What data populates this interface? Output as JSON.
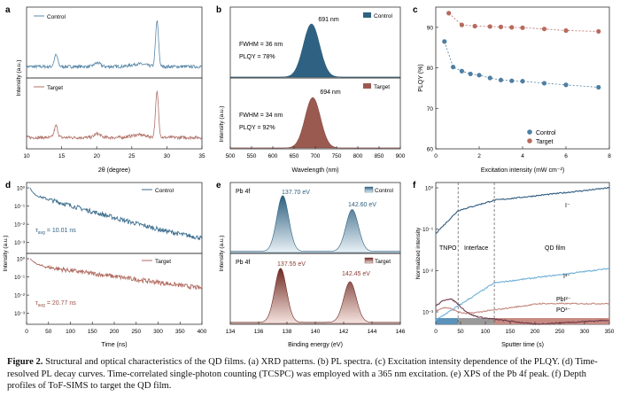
{
  "caption": {
    "label": "Figure 2.",
    "text": "Structural and optical characteristics of the QD films. (a) XRD patterns. (b) PL spectra. (c) Excitation intensity dependence of the PLQY. (d) Time-resolved PL decay curves. Time-correlated single-photon counting (TCSPC) was employed with a 365 nm excitation. (e) XPS of the Pb 4f peak. (f) Depth profiles of ToF-SIMS to target the QD film."
  },
  "colors": {
    "control": "#3d6e8f",
    "target": "#a65a4e",
    "control_light": "#6fa3c7",
    "target_light": "#d39a8e"
  },
  "panels": {
    "a": {
      "letter": "a",
      "ylabel": "Intensity (a.u.)",
      "legend_top": "Control",
      "legend_bottom": "Target"
    },
    "b": {
      "letter": "b",
      "ylabel": "Intensity (a.u.)",
      "legend_top": "Control",
      "legend_bottom": "Target",
      "peak_top": "691 nm",
      "fwhm_top": "FWHM = 36 nm",
      "plqy_top": "PLQY = 78%",
      "peak_bottom": "694 nm",
      "fwhm_bottom": "FWHM = 34 nm",
      "plqy_bottom": "PLQY = 92%"
    },
    "d": {
      "letter": "d",
      "ylabel": "Intensity (a.u.)",
      "legend_top": "Control",
      "legend_bottom": "Target",
      "tau_top": "= 10.01 ns",
      "tau_bottom": "= 20.77 ns",
      "tau_symbol": "τ",
      "tau_sub": "avg"
    },
    "e": {
      "letter": "e",
      "legend_top": "Control",
      "legend_bottom": "Target",
      "orbital": "Pb 4f",
      "peaks_top": [
        "137.70 eV",
        "142.60 eV"
      ],
      "peaks_bottom": [
        "137.55 eV",
        "142.45 eV"
      ]
    },
    "f": {
      "letter": "f",
      "regions": [
        "TNPO",
        "Interface",
        "QD film"
      ]
    }
  },
  "chart_data": [
    {
      "id": "a",
      "type": "line",
      "title": "",
      "xlabel": "2θ (degree)",
      "ylabel": "Intensity (a.u.)",
      "xlim": [
        10,
        35
      ],
      "xticks": [
        10,
        15,
        20,
        25,
        30,
        35
      ],
      "series": [
        {
          "name": "Control",
          "peaks_2theta": [
            14.2,
            20.1,
            28.6
          ]
        },
        {
          "name": "Target",
          "peaks_2theta": [
            14.2,
            20.1,
            28.6
          ]
        }
      ]
    },
    {
      "id": "b",
      "type": "area",
      "title": "",
      "xlabel": "Wavelength (nm)",
      "ylabel": "Intensity (a.u.)",
      "xlim": [
        500,
        900
      ],
      "xticks": [
        500,
        550,
        600,
        650,
        700,
        750,
        800,
        850,
        900
      ],
      "series": [
        {
          "name": "Control",
          "peak_nm": 691,
          "fwhm_nm": 36,
          "plqy_percent": 78
        },
        {
          "name": "Target",
          "peak_nm": 694,
          "fwhm_nm": 34,
          "plqy_percent": 92
        }
      ]
    },
    {
      "id": "c",
      "type": "scatter",
      "title": "",
      "xlabel": "Excitation intensity (mW cm⁻²)",
      "ylabel": "PLQY (%)",
      "xlim": [
        0,
        8
      ],
      "ylim": [
        60,
        95
      ],
      "xticks": [
        0,
        2,
        4,
        6,
        8
      ],
      "yticks": [
        60,
        70,
        80,
        90
      ],
      "legend": "bottom-right",
      "series": [
        {
          "name": "Control",
          "x": [
            0.4,
            0.8,
            1.2,
            1.6,
            2.0,
            2.5,
            3.0,
            3.5,
            4.0,
            5.0,
            6.0,
            7.5
          ],
          "y": [
            86.5,
            80.2,
            79.2,
            78.5,
            78.2,
            77.5,
            77.0,
            76.8,
            76.7,
            76.2,
            75.8,
            75.2
          ]
        },
        {
          "name": "Target",
          "x": [
            0.6,
            1.2,
            1.8,
            2.5,
            3.0,
            3.5,
            4.0,
            5.0,
            6.0,
            7.5
          ],
          "y": [
            93.5,
            90.6,
            90.3,
            90.2,
            90.1,
            90.0,
            89.9,
            89.6,
            89.2,
            89.0
          ]
        }
      ]
    },
    {
      "id": "d",
      "type": "line",
      "title": "",
      "xlabel": "Time (ns)",
      "ylabel": "Intensity (a.u.)",
      "xlim": [
        0,
        400
      ],
      "xticks": [
        0,
        50,
        100,
        150,
        200,
        250,
        300,
        350,
        400
      ],
      "yticks_log": [
        "10⁰",
        "10⁻¹",
        "10⁻²",
        "10⁻³"
      ],
      "series": [
        {
          "name": "Control",
          "tau_avg_ns": 10.01
        },
        {
          "name": "Target",
          "tau_avg_ns": 20.77
        }
      ]
    },
    {
      "id": "e",
      "type": "area",
      "title": "",
      "xlabel": "Binding energy (eV)",
      "xlim": [
        134,
        146
      ],
      "xticks": [
        134,
        136,
        138,
        140,
        142,
        144,
        146
      ],
      "series": [
        {
          "name": "Control",
          "peaks_ev": [
            137.7,
            142.6
          ]
        },
        {
          "name": "Target",
          "peaks_ev": [
            137.55,
            142.45
          ]
        }
      ]
    },
    {
      "id": "f",
      "type": "line",
      "title": "",
      "xlabel": "Sputter time (s)",
      "ylabel": "Normalized intensity",
      "xlim": [
        0,
        350
      ],
      "xticks": [
        0,
        50,
        100,
        150,
        200,
        250,
        300,
        350
      ],
      "yticks_log": [
        "10⁰",
        "10⁻¹",
        "10⁻²",
        "10⁻³"
      ],
      "region_boundaries_s": [
        45,
        118
      ],
      "series": [
        {
          "name": "I⁻"
        },
        {
          "name": "I³⁻"
        },
        {
          "name": "PbI²⁻"
        },
        {
          "name": "PO³⁻"
        }
      ]
    }
  ]
}
